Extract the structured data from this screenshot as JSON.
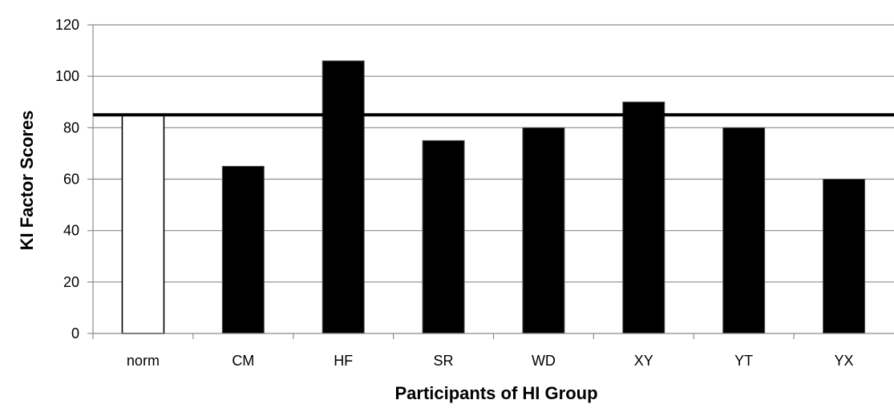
{
  "chart_data": {
    "type": "bar",
    "title": "",
    "xlabel": "Participants of HI Group",
    "ylabel": "KI Factor Scores",
    "categories": [
      "norm",
      "CM",
      "HF",
      "SR",
      "WD",
      "XY",
      "YT",
      "YX"
    ],
    "values": [
      85,
      65,
      106,
      75,
      80,
      90,
      80,
      60
    ],
    "bar_styles": [
      "outline",
      "filled",
      "filled",
      "filled",
      "filled",
      "filled",
      "filled",
      "filled"
    ],
    "ylim": [
      0,
      120
    ],
    "yticks": [
      0,
      20,
      40,
      60,
      80,
      100,
      120
    ],
    "reference_line": 85,
    "grid": true,
    "legend": "none",
    "colors": {
      "bar_fill": "#000000",
      "outline_bar_fill": "#ffffff",
      "gridline": "#8c8c8c",
      "reference_line": "#000000"
    }
  }
}
